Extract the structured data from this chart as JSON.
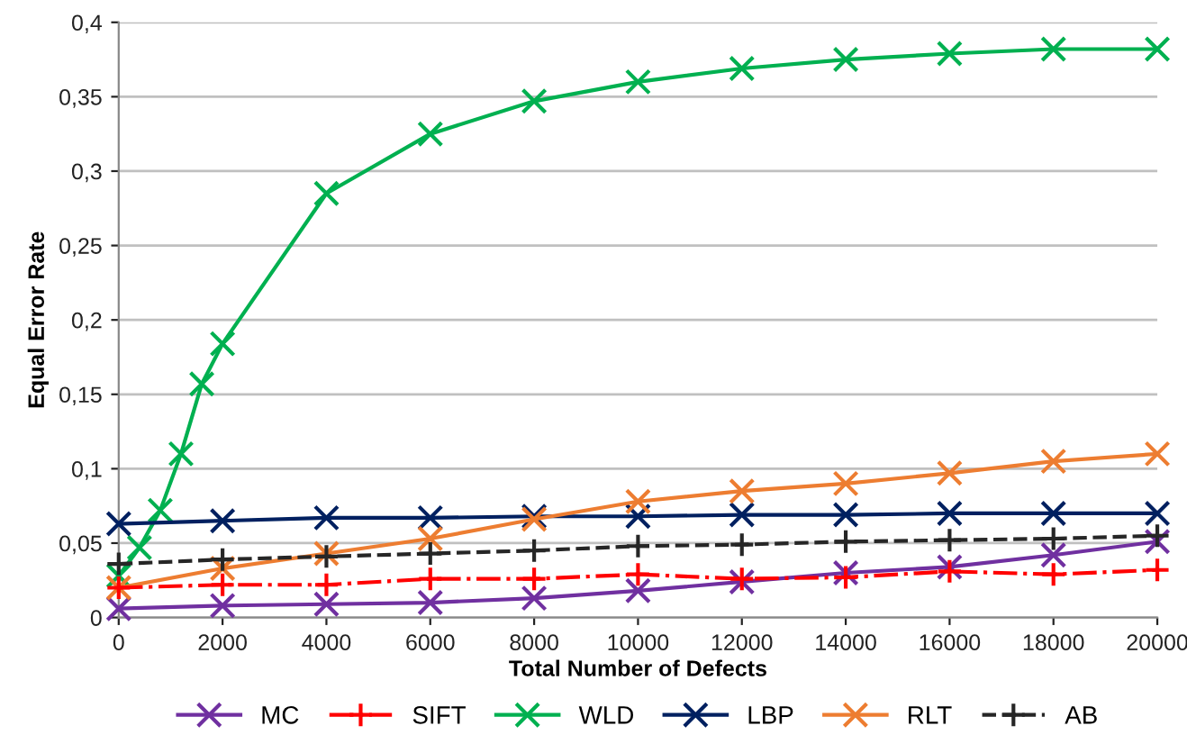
{
  "chart_data": {
    "type": "line",
    "xlabel": "Total Number of Defects",
    "ylabel": "Equal Error Rate",
    "xlim": [
      0,
      20000
    ],
    "xticks": [
      0,
      2000,
      4000,
      6000,
      8000,
      10000,
      12000,
      14000,
      16000,
      18000,
      20000
    ],
    "ylim": [
      0,
      0.4
    ],
    "yticks": [
      {
        "value": 0,
        "label": "0"
      },
      {
        "value": 0.05,
        "label": "0,05"
      },
      {
        "value": 0.1,
        "label": "0,1"
      },
      {
        "value": 0.15,
        "label": "0,15"
      },
      {
        "value": 0.2,
        "label": "0,2"
      },
      {
        "value": 0.25,
        "label": "0,25"
      },
      {
        "value": 0.3,
        "label": "0,3"
      },
      {
        "value": 0.35,
        "label": "0,35"
      },
      {
        "value": 0.4,
        "label": "0,4"
      }
    ],
    "grid": "y",
    "legend": "bottom",
    "x": [
      0,
      2000,
      4000,
      6000,
      8000,
      10000,
      12000,
      14000,
      16000,
      18000,
      20000
    ],
    "series": [
      {
        "name": "MC",
        "color": "#7030a0",
        "marker": "cross",
        "line_style": "solid",
        "values": [
          0.006,
          0.008,
          0.009,
          0.01,
          0.013,
          0.018,
          0.024,
          0.03,
          0.034,
          0.042,
          0.051
        ]
      },
      {
        "name": "SIFT",
        "color": "#ff0000",
        "marker": "plus",
        "line_style": "dashdot",
        "values": [
          0.02,
          0.022,
          0.022,
          0.026,
          0.026,
          0.029,
          0.026,
          0.027,
          0.031,
          0.029,
          0.032
        ]
      },
      {
        "name": "WLD",
        "color": "#00b050",
        "marker": "cross",
        "line_style": "solid",
        "x": [
          0,
          400,
          800,
          1200,
          1600,
          2000,
          4000,
          6000,
          8000,
          10000,
          12000,
          14000,
          16000,
          18000,
          20000
        ],
        "values": [
          0.028,
          0.047,
          0.072,
          0.11,
          0.157,
          0.184,
          0.285,
          0.325,
          0.347,
          0.36,
          0.369,
          0.375,
          0.379,
          0.382,
          0.382
        ]
      },
      {
        "name": "LBP",
        "color": "#002060",
        "marker": "cross",
        "line_style": "solid",
        "values": [
          0.063,
          0.065,
          0.067,
          0.067,
          0.068,
          0.068,
          0.069,
          0.069,
          0.07,
          0.07,
          0.07
        ]
      },
      {
        "name": "RLT",
        "color": "#ed7d31",
        "marker": "cross",
        "line_style": "solid",
        "values": [
          0.02,
          0.033,
          0.043,
          0.053,
          0.066,
          0.078,
          0.085,
          0.09,
          0.097,
          0.105,
          0.11
        ]
      },
      {
        "name": "AB",
        "color": "#262626",
        "marker": "plus",
        "line_style": "dashed",
        "values": [
          0.036,
          0.039,
          0.041,
          0.043,
          0.045,
          0.048,
          0.049,
          0.051,
          0.052,
          0.053,
          0.055
        ]
      }
    ]
  }
}
